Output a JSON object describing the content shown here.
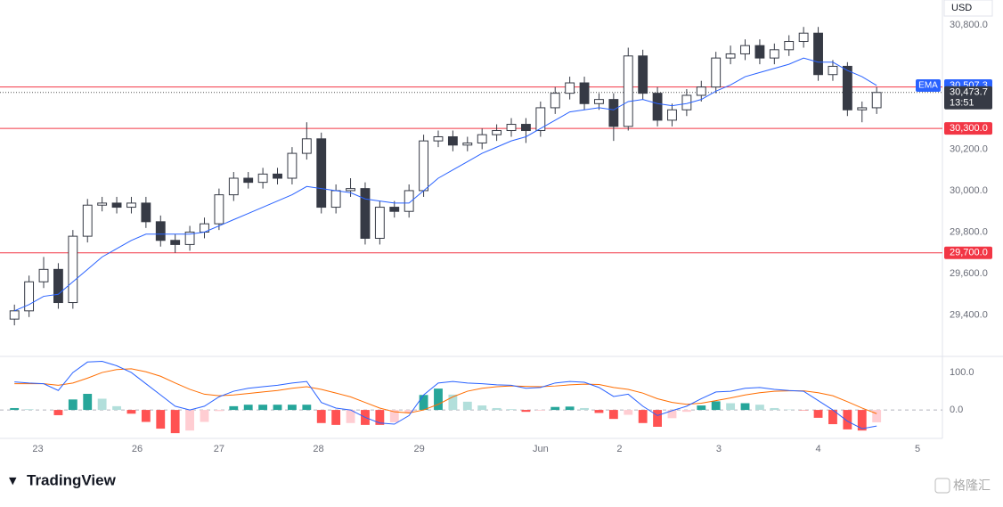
{
  "brand": "TradingView",
  "watermark": "格隆汇",
  "chart_data": [
    {
      "type": "candlestick",
      "currency": "USD",
      "xlim": [
        -0.5,
        63.5
      ],
      "ylim": [
        29200,
        30920
      ],
      "yticks": [
        {
          "value": 29400,
          "label": "29,400.0"
        },
        {
          "value": 29600,
          "label": "29,600.0"
        },
        {
          "value": 29800,
          "label": "29,800.0"
        },
        {
          "value": 30000,
          "label": "30,000.0"
        },
        {
          "value": 30200,
          "label": "30,200.0"
        },
        {
          "value": 30800,
          "label": "30,800.0"
        }
      ],
      "up_color": "#ffffff",
      "down_color": "#363a45",
      "open": [
        29380,
        29420,
        29560,
        29620,
        29460,
        29780,
        29930,
        29940,
        29920,
        29940,
        29850,
        29760,
        29740,
        29800,
        29840,
        29980,
        30060,
        30040,
        30080,
        30060,
        30180,
        30250,
        29920,
        30000,
        30010,
        29770,
        29920,
        29900,
        30000,
        30240,
        30260,
        30220,
        30230,
        30270,
        30290,
        30320,
        30290,
        30400,
        30470,
        30520,
        30420,
        30440,
        30310,
        30650,
        30470,
        30340,
        30390,
        30460,
        30500,
        30640,
        30660,
        30700,
        30640,
        30680,
        30720,
        30760,
        30560,
        30600,
        30390,
        30400
      ],
      "high": [
        29450,
        29590,
        29680,
        29650,
        29810,
        29960,
        29970,
        29970,
        29970,
        29970,
        29880,
        29790,
        29830,
        29870,
        30010,
        30090,
        30090,
        30110,
        30110,
        30210,
        30330,
        30280,
        30030,
        30060,
        30040,
        29950,
        29950,
        30030,
        30270,
        30290,
        30290,
        30260,
        30300,
        30320,
        30350,
        30350,
        30430,
        30500,
        30550,
        30550,
        30470,
        30470,
        30690,
        30680,
        30500,
        30420,
        30490,
        30530,
        30670,
        30700,
        30730,
        30730,
        30710,
        30750,
        30790,
        30790,
        30630,
        30620,
        30430,
        30500
      ],
      "low": [
        29350,
        29390,
        29530,
        29430,
        29430,
        29750,
        29900,
        29890,
        29890,
        29820,
        29730,
        29700,
        29710,
        29770,
        29810,
        29950,
        30010,
        30010,
        30030,
        30030,
        30150,
        29890,
        29890,
        29970,
        29740,
        29740,
        29870,
        29870,
        29970,
        30210,
        30190,
        30190,
        30200,
        30240,
        30260,
        30230,
        30260,
        30370,
        30440,
        30390,
        30390,
        30240,
        30290,
        30440,
        30310,
        30310,
        30360,
        30430,
        30470,
        30610,
        30630,
        30610,
        30610,
        30650,
        30690,
        30530,
        30530,
        30360,
        30330,
        30370
      ],
      "close": [
        29420,
        29560,
        29620,
        29460,
        29780,
        29930,
        29940,
        29920,
        29940,
        29850,
        29760,
        29740,
        29800,
        29840,
        29980,
        30060,
        30040,
        30080,
        30060,
        30180,
        30250,
        29920,
        30000,
        30010,
        29770,
        29920,
        29900,
        30000,
        30240,
        30260,
        30220,
        30230,
        30270,
        30290,
        30320,
        30290,
        30400,
        30470,
        30520,
        30420,
        30440,
        30310,
        30650,
        30470,
        30340,
        30390,
        30460,
        30500,
        30640,
        30660,
        30700,
        30640,
        30680,
        30720,
        30760,
        30560,
        30600,
        30390,
        30400,
        30473.7
      ],
      "ema": {
        "name": "EMA",
        "color": "#2962ff",
        "last_label": "30,507.3",
        "values": [
          29420,
          29450,
          29490,
          29500,
          29560,
          29620,
          29680,
          29720,
          29760,
          29790,
          29790,
          29790,
          29790,
          29800,
          29830,
          29860,
          29890,
          29920,
          29950,
          29980,
          30020,
          30010,
          30000,
          29990,
          29960,
          29950,
          29940,
          29940,
          30000,
          30060,
          30100,
          30140,
          30180,
          30210,
          30240,
          30260,
          30300,
          30340,
          30380,
          30390,
          30400,
          30390,
          30430,
          30440,
          30420,
          30410,
          30420,
          30440,
          30480,
          30510,
          30550,
          30570,
          30590,
          30610,
          30640,
          30620,
          30620,
          30580,
          30550,
          30507.3
        ]
      },
      "hline_color": "#f23645",
      "hlines": [
        {
          "value": 30500,
          "label": "30,500.0"
        },
        {
          "value": 30300,
          "label": "30,300.0"
        },
        {
          "value": 29700,
          "label": "29,700.0"
        }
      ],
      "last_price": {
        "value": 30473.7,
        "label": "30,473.7",
        "countdown": "13:51"
      }
    },
    {
      "type": "macd",
      "xlim": [
        -0.5,
        63.5
      ],
      "ylim": [
        -76,
        143
      ],
      "yticks": [
        {
          "value": 100,
          "label": "100.0"
        },
        {
          "value": 0,
          "label": "0.0"
        }
      ],
      "xticks": [
        {
          "value": 1.6,
          "label": "23"
        },
        {
          "value": 8.4,
          "label": "26"
        },
        {
          "value": 14.0,
          "label": "27"
        },
        {
          "value": 20.8,
          "label": "28"
        },
        {
          "value": 27.7,
          "label": "29"
        },
        {
          "value": 36.0,
          "label": "Jun"
        },
        {
          "value": 41.4,
          "label": "2"
        },
        {
          "value": 48.2,
          "label": "3"
        },
        {
          "value": 55.0,
          "label": "4"
        },
        {
          "value": 61.8,
          "label": "5"
        }
      ],
      "zero_line": true,
      "macd": {
        "color": "#2962ff",
        "values": [
          75,
          72,
          70,
          52,
          100,
          128,
          130,
          118,
          100,
          70,
          40,
          10,
          0,
          10,
          35,
          50,
          58,
          62,
          66,
          72,
          76,
          20,
          5,
          0,
          -20,
          -35,
          -38,
          -15,
          40,
          72,
          76,
          72,
          70,
          67,
          66,
          58,
          60,
          72,
          76,
          74,
          60,
          36,
          42,
          10,
          -15,
          -2,
          10,
          30,
          48,
          50,
          58,
          60,
          55,
          52,
          50,
          25,
          0,
          -30,
          -50,
          -43
        ]
      },
      "signal": {
        "color": "#ff6d00",
        "values": [
          70,
          70,
          70,
          66,
          72,
          85,
          100,
          108,
          110,
          102,
          90,
          72,
          55,
          42,
          38,
          40,
          44,
          48,
          52,
          58,
          62,
          55,
          45,
          35,
          20,
          5,
          -5,
          -8,
          0,
          15,
          35,
          50,
          58,
          62,
          64,
          63,
          62,
          64,
          67,
          69,
          68,
          60,
          55,
          45,
          30,
          20,
          15,
          18,
          25,
          32,
          40,
          46,
          50,
          51,
          51,
          46,
          38,
          22,
          5,
          -10
        ]
      },
      "histogram": [
        5,
        2,
        0,
        -14,
        28,
        43,
        30,
        10,
        -10,
        -32,
        -50,
        -62,
        -55,
        -32,
        -3,
        10,
        14,
        14,
        14,
        14,
        14,
        -35,
        -40,
        -35,
        -40,
        -40,
        -33,
        -7,
        40,
        57,
        41,
        22,
        12,
        5,
        2,
        -5,
        -2,
        8,
        9,
        5,
        -8,
        -24,
        -13,
        -35,
        -45,
        -22,
        -5,
        12,
        23,
        18,
        18,
        14,
        5,
        1,
        -1,
        -21,
        -38,
        -52,
        -55,
        -33
      ],
      "hist_colors": {
        "up_strong": "#26a69a",
        "up_weak": "#b2dfdb",
        "down_strong": "#ff5252",
        "down_weak": "#ffcdd2"
      }
    }
  ]
}
